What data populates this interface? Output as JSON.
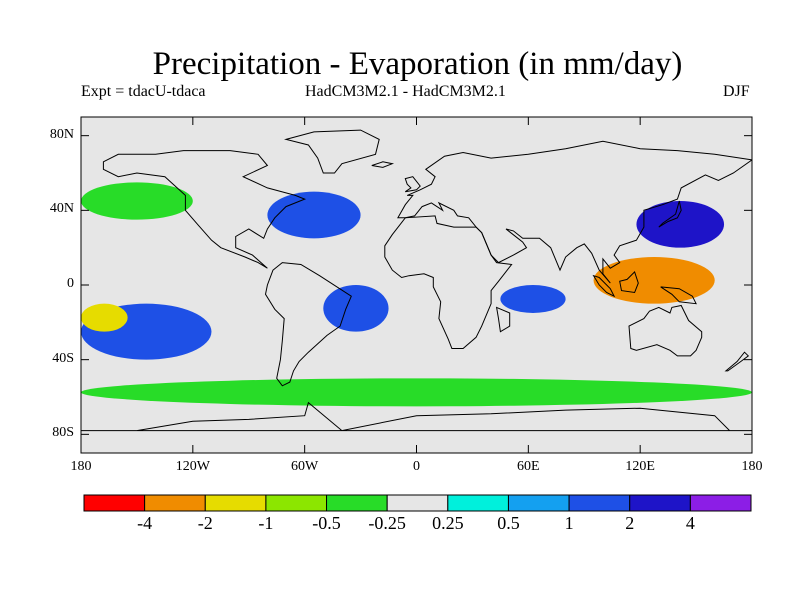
{
  "title": "Precipitation - Evaporation (in mm/day)",
  "expt_label": "Expt = tdacU-tdaca",
  "model_label": "HadCM3M2.1 - HadCM3M2.1",
  "season_label": "DJF",
  "map": {
    "projection": "equirectangular",
    "background_color": "#e6e6e6",
    "lat_ticks": [
      "80N",
      "40N",
      "0",
      "40S",
      "80S"
    ],
    "lon_ticks": [
      "180",
      "120W",
      "60W",
      "0",
      "60E",
      "120E",
      "180"
    ]
  },
  "colorbar": {
    "colors": [
      "#ff0000",
      "#f08c00",
      "#e6dc00",
      "#8ce600",
      "#28dc28",
      "#e6e6e6",
      "#00f0dc",
      "#14a0f0",
      "#1e50e6",
      "#1e14c8",
      "#8c1ee6"
    ],
    "labels": [
      "-4",
      "-2",
      "-1",
      "-0.5",
      "-0.25",
      "0.25",
      "0.5",
      "1",
      "2",
      "4"
    ]
  },
  "chart_data": {
    "type": "heatmap",
    "title": "Precipitation - Evaporation (in mm/day)",
    "subtitle": "HadCM3M2.1 - HadCM3M2.1",
    "experiment": "Expt = tdacU-tdaca",
    "season": "DJF",
    "variable_units": "mm/day",
    "x_range": [
      -180,
      180
    ],
    "y_range": [
      -90,
      90
    ],
    "contour_levels": [
      -4,
      -2,
      -1,
      -0.5,
      -0.25,
      0.25,
      0.5,
      1,
      2,
      4
    ],
    "regions": [
      {
        "name": "western tropical Pacific / Maritime Continent",
        "lon": [
          95,
          160
        ],
        "lat": [
          -10,
          15
        ],
        "value": -3
      },
      {
        "name": "tropical South Atlantic",
        "lon": [
          -50,
          -15
        ],
        "lat": [
          -25,
          0
        ],
        "value": 1.5
      },
      {
        "name": "tropical southwest Indian Ocean",
        "lon": [
          45,
          80
        ],
        "lat": [
          -15,
          0
        ],
        "value": 1.5
      },
      {
        "name": "northwest Pacific",
        "lon": [
          118,
          165
        ],
        "lat": [
          20,
          45
        ],
        "value": 2
      },
      {
        "name": "North Atlantic / Gulf Stream",
        "lon": [
          -80,
          -30
        ],
        "lat": [
          25,
          50
        ],
        "value": 1.5
      },
      {
        "name": "North Pacific",
        "lon": [
          -180,
          -120
        ],
        "lat": [
          35,
          55
        ],
        "value": -0.5
      },
      {
        "name": "South Pacific",
        "lon": [
          -180,
          -110
        ],
        "lat": [
          -40,
          -10
        ],
        "value": 1
      },
      {
        "name": "Southern Ocean band",
        "lon": [
          -180,
          180
        ],
        "lat": [
          -65,
          -50
        ],
        "value": -0.5
      },
      {
        "name": "eastern South Pacific",
        "lon": [
          -180,
          -155
        ],
        "lat": [
          -25,
          -10
        ],
        "value": -2
      }
    ]
  }
}
